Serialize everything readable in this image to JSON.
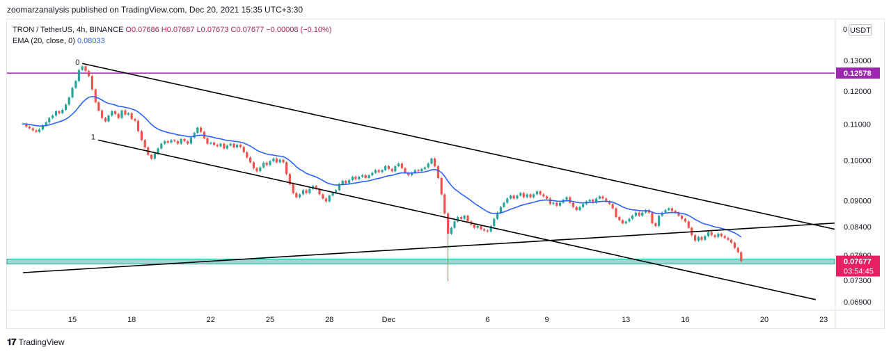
{
  "publisher": "zoomarzanalysis published on TradingView.com, Dec 20, 2021 15:35 UTC+3:30",
  "legend": {
    "symbol": "TRON / TetherUS, 4h, BINANCE",
    "ohlc": "O0.07686  H0.07687  L0.07673  C0.07677  −0.00008 (−0.10%)",
    "ema_label": "EMA (20, close, 0)",
    "ema_value": "0.08033"
  },
  "currency_button": "USDT",
  "axis_top_label": "0",
  "brand": "TradingView",
  "colors": {
    "up": "#26a69a",
    "down": "#ef5350",
    "ema": "#2962ff",
    "resistance": "#9c27b0",
    "price_badge": "#e91e63",
    "support_zone": "#4db6ac"
  },
  "chart_data": {
    "type": "candlestick",
    "y_axis": {
      "scale": "log",
      "ticks": [
        "0.13000",
        "0.12000",
        "0.11000",
        "0.10000",
        "0.09000",
        "0.08400",
        "0.07800",
        "0.07300",
        "0.06900"
      ]
    },
    "x_axis": {
      "ticks": [
        "15",
        "18",
        "22",
        "25",
        "28",
        "Dec",
        "6",
        "9",
        "13",
        "16",
        "20",
        "23"
      ],
      "tick_days": [
        15,
        18,
        22,
        25,
        28,
        31,
        36,
        39,
        43,
        46,
        50,
        53
      ]
    },
    "candles": [
      [
        12.5,
        0.1101
      ],
      [
        12.67,
        0.1093
      ],
      [
        12.83,
        0.1088
      ],
      [
        13,
        0.1082
      ],
      [
        13.17,
        0.1078
      ],
      [
        13.33,
        0.1085
      ],
      [
        13.5,
        0.1097
      ],
      [
        13.67,
        0.1105
      ],
      [
        13.83,
        0.1118
      ],
      [
        14,
        0.1125
      ],
      [
        14.17,
        0.1138
      ],
      [
        14.33,
        0.1132
      ],
      [
        14.5,
        0.1142
      ],
      [
        14.67,
        0.1158
      ],
      [
        14.83,
        0.118
      ],
      [
        15,
        0.121
      ],
      [
        15.17,
        0.1232
      ],
      [
        15.33,
        0.1268
      ],
      [
        15.5,
        0.128
      ],
      [
        15.67,
        0.1265
      ],
      [
        15.83,
        0.1248
      ],
      [
        16,
        0.1205
      ],
      [
        16.17,
        0.1165
      ],
      [
        16.33,
        0.114
      ],
      [
        16.5,
        0.1118
      ],
      [
        16.67,
        0.1108
      ],
      [
        16.83,
        0.1125
      ],
      [
        17,
        0.1138
      ],
      [
        17.17,
        0.113
      ],
      [
        17.33,
        0.1118
      ],
      [
        17.5,
        0.114
      ],
      [
        17.67,
        0.1128
      ],
      [
        17.83,
        0.1132
      ],
      [
        18,
        0.1115
      ],
      [
        18.17,
        0.111
      ],
      [
        18.33,
        0.108
      ],
      [
        18.5,
        0.1055
      ],
      [
        18.67,
        0.1035
      ],
      [
        18.83,
        0.1015
      ],
      [
        19,
        0.1005
      ],
      [
        19.17,
        0.1018
      ],
      [
        19.33,
        0.1032
      ],
      [
        19.5,
        0.1045
      ],
      [
        19.67,
        0.1052
      ],
      [
        19.83,
        0.1048
      ],
      [
        20,
        0.1055
      ],
      [
        20.17,
        0.1052
      ],
      [
        20.33,
        0.1045
      ],
      [
        20.5,
        0.1058
      ],
      [
        20.67,
        0.1052
      ],
      [
        20.83,
        0.1045
      ],
      [
        21,
        0.1062
      ],
      [
        21.17,
        0.1075
      ],
      [
        21.33,
        0.109
      ],
      [
        21.5,
        0.1078
      ],
      [
        21.67,
        0.106
      ],
      [
        21.83,
        0.1045
      ],
      [
        22,
        0.1048
      ],
      [
        22.17,
        0.1042
      ],
      [
        22.33,
        0.1038
      ],
      [
        22.5,
        0.1045
      ],
      [
        22.67,
        0.1032
      ],
      [
        22.83,
        0.104
      ],
      [
        23,
        0.1045
      ],
      [
        23.17,
        0.1035
      ],
      [
        23.33,
        0.1042
      ],
      [
        23.5,
        0.1036
      ],
      [
        23.67,
        0.1022
      ],
      [
        23.83,
        0.1008
      ],
      [
        24,
        0.0995
      ],
      [
        24.17,
        0.098
      ],
      [
        24.33,
        0.0972
      ],
      [
        24.5,
        0.0982
      ],
      [
        24.67,
        0.0994
      ],
      [
        24.83,
        0.0988
      ],
      [
        25,
        0.0998
      ],
      [
        25.17,
        0.1005
      ],
      [
        25.33,
        0.0995
      ],
      [
        25.5,
        0.1002
      ],
      [
        25.67,
        0.0995
      ],
      [
        25.83,
        0.0965
      ],
      [
        26,
        0.094
      ],
      [
        26.17,
        0.0918
      ],
      [
        26.33,
        0.0908
      ],
      [
        26.5,
        0.0915
      ],
      [
        26.67,
        0.0925
      ],
      [
        26.83,
        0.0918
      ],
      [
        27,
        0.0928
      ],
      [
        27.17,
        0.0935
      ],
      [
        27.33,
        0.0928
      ],
      [
        27.5,
        0.0915
      ],
      [
        27.67,
        0.0905
      ],
      [
        27.83,
        0.0898
      ],
      [
        28,
        0.0912
      ],
      [
        28.17,
        0.0918
      ],
      [
        28.33,
        0.0925
      ],
      [
        28.5,
        0.094
      ],
      [
        28.67,
        0.0948
      ],
      [
        28.83,
        0.0942
      ],
      [
        29,
        0.095
      ],
      [
        29.17,
        0.0958
      ],
      [
        29.33,
        0.0952
      ],
      [
        29.5,
        0.0958
      ],
      [
        29.67,
        0.0962
      ],
      [
        29.83,
        0.0955
      ],
      [
        30,
        0.0962
      ],
      [
        30.17,
        0.0968
      ],
      [
        30.33,
        0.0975
      ],
      [
        30.5,
        0.097
      ],
      [
        30.67,
        0.0975
      ],
      [
        30.83,
        0.0985
      ],
      [
        31,
        0.0978
      ],
      [
        31.17,
        0.0972
      ],
      [
        31.33,
        0.0985
      ],
      [
        31.5,
        0.0992
      ],
      [
        31.67,
        0.098
      ],
      [
        31.83,
        0.0968
      ],
      [
        32,
        0.0962
      ],
      [
        32.17,
        0.0968
      ],
      [
        32.33,
        0.0975
      ],
      [
        32.5,
        0.0972
      ],
      [
        32.67,
        0.0978
      ],
      [
        32.83,
        0.0982
      ],
      [
        33,
        0.0992
      ],
      [
        33.17,
        0.1005
      ],
      [
        33.33,
        0.0985
      ],
      [
        33.5,
        0.0955
      ],
      [
        33.67,
        0.0915
      ],
      [
        33.83,
        0.087
      ],
      [
        34,
        0.0825
      ],
      [
        34.17,
        0.0838
      ],
      [
        34.33,
        0.0852
      ],
      [
        34.5,
        0.0862
      ],
      [
        34.67,
        0.0858
      ],
      [
        34.83,
        0.0865
      ],
      [
        35,
        0.0852
      ],
      [
        35.17,
        0.0845
      ],
      [
        35.33,
        0.0838
      ],
      [
        35.5,
        0.0842
      ],
      [
        35.67,
        0.0835
      ],
      [
        35.83,
        0.0832
      ],
      [
        36,
        0.083
      ],
      [
        36.17,
        0.0842
      ],
      [
        36.33,
        0.0858
      ],
      [
        36.5,
        0.0872
      ],
      [
        36.67,
        0.0885
      ],
      [
        36.83,
        0.0895
      ],
      [
        37,
        0.0905
      ],
      [
        37.17,
        0.0912
      ],
      [
        37.33,
        0.0905
      ],
      [
        37.5,
        0.0912
      ],
      [
        37.67,
        0.0918
      ],
      [
        37.83,
        0.0908
      ],
      [
        38,
        0.0915
      ],
      [
        38.17,
        0.0908
      ],
      [
        38.33,
        0.0915
      ],
      [
        38.5,
        0.0922
      ],
      [
        38.67,
        0.0915
      ],
      [
        38.83,
        0.091
      ],
      [
        39,
        0.0905
      ],
      [
        39.17,
        0.0892
      ],
      [
        39.33,
        0.0895
      ],
      [
        39.5,
        0.0888
      ],
      [
        39.67,
        0.0895
      ],
      [
        39.83,
        0.0902
      ],
      [
        40,
        0.0908
      ],
      [
        40.17,
        0.0895
      ],
      [
        40.33,
        0.0885
      ],
      [
        40.5,
        0.0878
      ],
      [
        40.67,
        0.0885
      ],
      [
        40.83,
        0.0892
      ],
      [
        41,
        0.0898
      ],
      [
        41.17,
        0.0902
      ],
      [
        41.33,
        0.0895
      ],
      [
        41.5,
        0.0905
      ],
      [
        41.67,
        0.091
      ],
      [
        41.83,
        0.0905
      ],
      [
        42,
        0.0898
      ],
      [
        42.17,
        0.0892
      ],
      [
        42.33,
        0.0882
      ],
      [
        42.5,
        0.0862
      ],
      [
        42.67,
        0.0855
      ],
      [
        42.83,
        0.0848
      ],
      [
        43,
        0.0852
      ],
      [
        43.17,
        0.0858
      ],
      [
        43.33,
        0.0865
      ],
      [
        43.5,
        0.0872
      ],
      [
        43.67,
        0.0865
      ],
      [
        43.83,
        0.0872
      ],
      [
        44,
        0.0878
      ],
      [
        44.17,
        0.0872
      ],
      [
        44.33,
        0.0848
      ],
      [
        44.5,
        0.0842
      ],
      [
        44.67,
        0.0865
      ],
      [
        44.83,
        0.0872
      ],
      [
        45,
        0.0878
      ],
      [
        45.17,
        0.0882
      ],
      [
        45.33,
        0.0876
      ],
      [
        45.5,
        0.0872
      ],
      [
        45.67,
        0.0865
      ],
      [
        45.83,
        0.0858
      ],
      [
        46,
        0.0852
      ],
      [
        46.17,
        0.0838
      ],
      [
        46.33,
        0.0822
      ],
      [
        46.5,
        0.081
      ],
      [
        46.67,
        0.0818
      ],
      [
        46.83,
        0.0812
      ],
      [
        47,
        0.082
      ],
      [
        47.17,
        0.0828
      ],
      [
        47.33,
        0.0822
      ],
      [
        47.5,
        0.0818
      ],
      [
        47.67,
        0.0825
      ],
      [
        47.83,
        0.082
      ],
      [
        48,
        0.0816
      ],
      [
        48.17,
        0.0812
      ],
      [
        48.33,
        0.0806
      ],
      [
        48.5,
        0.0795
      ],
      [
        48.67,
        0.0786
      ],
      [
        48.83,
        0.0768
      ]
    ],
    "ema": {
      "period": 20,
      "value": 0.08033
    },
    "horizontal_lines": [
      {
        "price": 0.12578,
        "label": "0.12578",
        "color": "#9c27b0"
      }
    ],
    "support_zone": {
      "low": 0.0762,
      "high": 0.0772
    },
    "channel": {
      "upper": [
        [
          15.5,
          0.129
        ],
        [
          56,
          0.0812
        ]
      ],
      "lower": [
        [
          16.3,
          0.1055
        ],
        [
          52.6,
          0.0694
        ]
      ]
    },
    "trendline": [
      [
        12.5,
        0.0745
      ],
      [
        56,
        0.0855
      ]
    ],
    "pivot_labels": [
      {
        "text": "0",
        "day": 15.5,
        "price": 0.129
      },
      {
        "text": "1",
        "day": 16.3,
        "price": 0.1055
      }
    ],
    "last_price": {
      "label": "0.07677",
      "countdown": "03:54:45"
    }
  }
}
